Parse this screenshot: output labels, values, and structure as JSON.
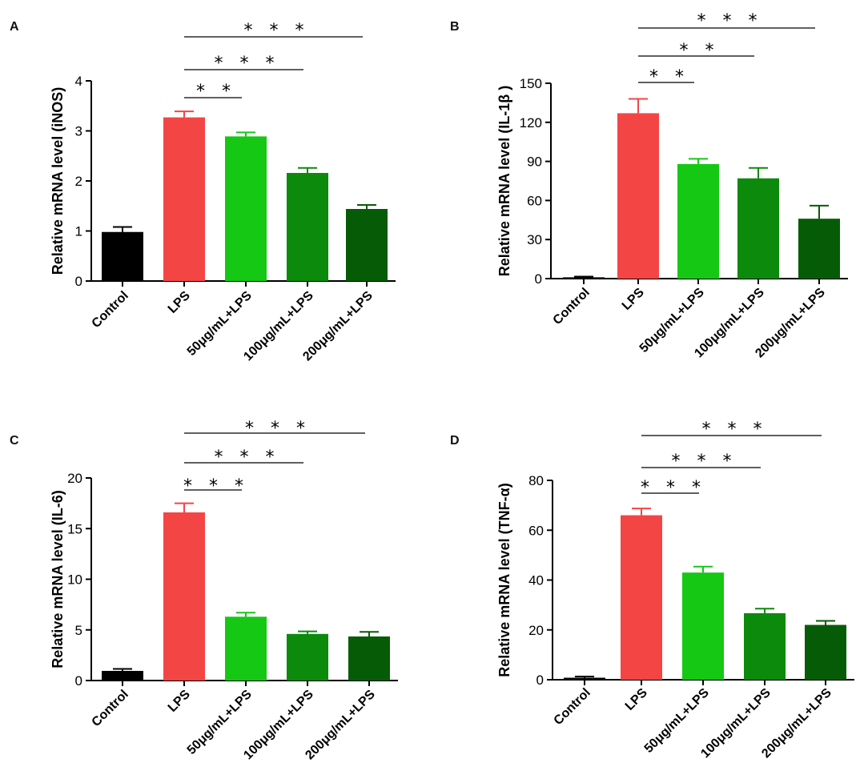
{
  "chart_data": [
    {
      "type": "bar",
      "panel": "A",
      "ylabel": "Relative mRNA level (iNOS)",
      "ylim": [
        0,
        4
      ],
      "yticks": [
        0,
        1,
        2,
        3,
        4
      ],
      "categories": [
        "Control",
        "LPS",
        "50μg/mL+LPS",
        "100μg/mL+LPS",
        "200μg/mL+LPS"
      ],
      "values": [
        0.98,
        3.27,
        2.89,
        2.16,
        1.44
      ],
      "errors": [
        0.1,
        0.12,
        0.08,
        0.1,
        0.08
      ],
      "comparisons": [
        {
          "from": 1,
          "to": 2,
          "label": "* *"
        },
        {
          "from": 1,
          "to": 3,
          "label": "* * *"
        },
        {
          "from": 1,
          "to": 4,
          "label": "* * *"
        }
      ]
    },
    {
      "type": "bar",
      "panel": "B",
      "ylabel": "Relative mRNA level (IL-1β )",
      "ylim": [
        0,
        150
      ],
      "yticks": [
        0,
        30,
        60,
        90,
        120,
        150
      ],
      "categories": [
        "Control",
        "LPS",
        "50μg/mL+LPS",
        "100μg/mL+LPS",
        "200μg/mL+LPS"
      ],
      "values": [
        1,
        127,
        88,
        77,
        46
      ],
      "errors": [
        0.5,
        11,
        4,
        8,
        10
      ],
      "comparisons": [
        {
          "from": 1,
          "to": 2,
          "label": "* *"
        },
        {
          "from": 1,
          "to": 3,
          "label": "* *"
        },
        {
          "from": 1,
          "to": 4,
          "label": "* * *"
        }
      ]
    },
    {
      "type": "bar",
      "panel": "C",
      "ylabel": "Relative mRNA level (IL-6)",
      "ylim": [
        0,
        20
      ],
      "yticks": [
        0,
        5,
        10,
        15,
        20
      ],
      "categories": [
        "Control",
        "LPS",
        "50μg/mL+LPS",
        "100μg/mL+LPS",
        "200μg/mL+LPS"
      ],
      "values": [
        0.95,
        16.6,
        6.3,
        4.6,
        4.35
      ],
      "errors": [
        0.2,
        0.9,
        0.4,
        0.25,
        0.45
      ],
      "comparisons": [
        {
          "from": 1,
          "to": 2,
          "label": "* * *"
        },
        {
          "from": 1,
          "to": 3,
          "label": "* * *"
        },
        {
          "from": 1,
          "to": 4,
          "label": "* * *"
        }
      ]
    },
    {
      "type": "bar",
      "panel": "D",
      "ylabel": "Relative mRNA level (TNF-α)",
      "ylim": [
        0,
        80
      ],
      "yticks": [
        0,
        20,
        40,
        60,
        80
      ],
      "categories": [
        "Control",
        "LPS",
        "50μg/mL+LPS",
        "100μg/mL+LPS",
        "200μg/mL+LPS"
      ],
      "values": [
        0.8,
        66,
        43,
        26.7,
        22
      ],
      "errors": [
        0.5,
        2.7,
        2.4,
        1.8,
        1.6
      ],
      "comparisons": [
        {
          "from": 1,
          "to": 2,
          "label": "* * *"
        },
        {
          "from": 1,
          "to": 3,
          "label": "* * *"
        },
        {
          "from": 1,
          "to": 4,
          "label": "* * *"
        }
      ]
    }
  ],
  "colors": {
    "bars": [
      "#000000",
      "#f44545",
      "#14c814",
      "#0b8a0b",
      "#065c06"
    ],
    "error_bars": [
      "#000000",
      "#f44545",
      "#14c814",
      "#0b8a0b",
      "#065c06"
    ]
  }
}
